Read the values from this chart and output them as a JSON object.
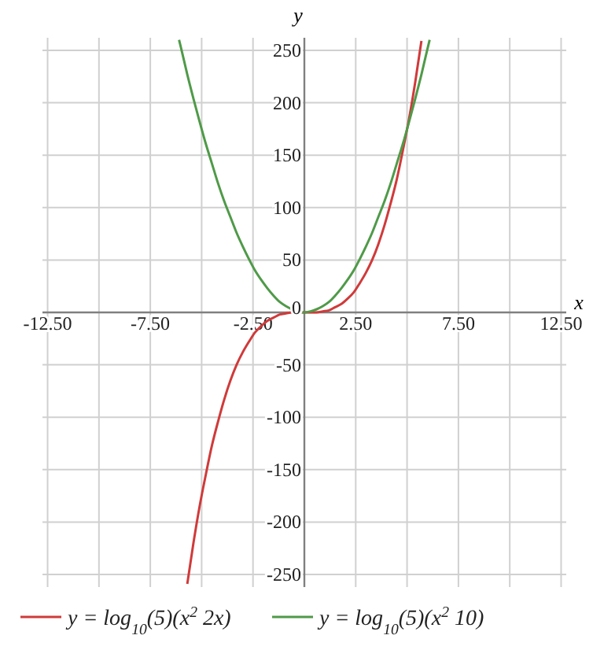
{
  "chart_data": {
    "type": "line",
    "xlabel": "x",
    "ylabel": "y",
    "legend": "bottom",
    "grid": true,
    "xlim": [
      -12.75,
      12.75
    ],
    "ylim": [
      -262,
      262
    ],
    "xticks": [
      {
        "value": -12.5,
        "label": "-12.50"
      },
      {
        "value": -10,
        "label": null
      },
      {
        "value": -7.5,
        "label": "-7.50"
      },
      {
        "value": -5,
        "label": null
      },
      {
        "value": -2.5,
        "label": "-2.50"
      },
      {
        "value": 0,
        "label": null
      },
      {
        "value": 2.5,
        "label": "2.50"
      },
      {
        "value": 5,
        "label": null
      },
      {
        "value": 7.5,
        "label": "7.50"
      },
      {
        "value": 10,
        "label": null
      },
      {
        "value": 12.5,
        "label": "12.50"
      }
    ],
    "yticks": [
      -250,
      -200,
      -150,
      -100,
      -50,
      0,
      50,
      100,
      150,
      200,
      250
    ],
    "series": [
      {
        "name": "y = log$_{10}$(5)(x$^{2}$ 2x)",
        "color": "#d03a3a",
        "x": [
          -5.7,
          -5.4,
          -5.1,
          -4.8,
          -4.5,
          -4.2,
          -3.9,
          -3.6,
          -3.3,
          -3.0,
          -2.7,
          -2.4,
          -2.1,
          -1.8,
          -1.5,
          -1.2,
          -0.9,
          -0.6,
          -0.3,
          0,
          0.3,
          0.6,
          0.9,
          1.2,
          1.5,
          1.8,
          2.1,
          2.4,
          2.7,
          3.0,
          3.3,
          3.6,
          3.9,
          4.2,
          4.5,
          4.8,
          5.1,
          5.4,
          5.7
        ],
        "values": [
          -259,
          -220,
          -185,
          -155,
          -127,
          -104,
          -83,
          -65,
          -50,
          -38,
          -28,
          -19,
          -13,
          -8,
          -5,
          -2,
          -1,
          0,
          0,
          0,
          0,
          0,
          1,
          2,
          5,
          8,
          13,
          19,
          28,
          38,
          50,
          65,
          83,
          104,
          127,
          155,
          185,
          220,
          259
        ]
      },
      {
        "name": "y = log$_{10}$(5)(x$^{2}$ 10)",
        "color": "#4f9a48",
        "x": [
          -6.1,
          -6.0,
          -5.7,
          -5.4,
          -5.1,
          -4.8,
          -4.5,
          -4.2,
          -3.9,
          -3.6,
          -3.3,
          -3.0,
          -2.7,
          -2.4,
          -2.1,
          -1.8,
          -1.5,
          -1.2,
          -0.9,
          -0.6,
          -0.3,
          0,
          0.3,
          0.6,
          0.9,
          1.2,
          1.5,
          1.8,
          2.1,
          2.4,
          2.7,
          3.0,
          3.3,
          3.6,
          3.9,
          4.2,
          4.5,
          4.8,
          5.1,
          5.4,
          5.7,
          6.0,
          6.1
        ],
        "values": [
          260,
          252,
          227,
          204,
          182,
          161,
          142,
          123,
          106,
          91,
          76,
          63,
          51,
          40,
          31,
          23,
          16,
          10,
          6,
          3,
          1,
          0,
          1,
          3,
          6,
          10,
          16,
          23,
          31,
          40,
          51,
          63,
          76,
          91,
          106,
          123,
          142,
          161,
          182,
          204,
          227,
          252,
          260
        ]
      }
    ]
  }
}
